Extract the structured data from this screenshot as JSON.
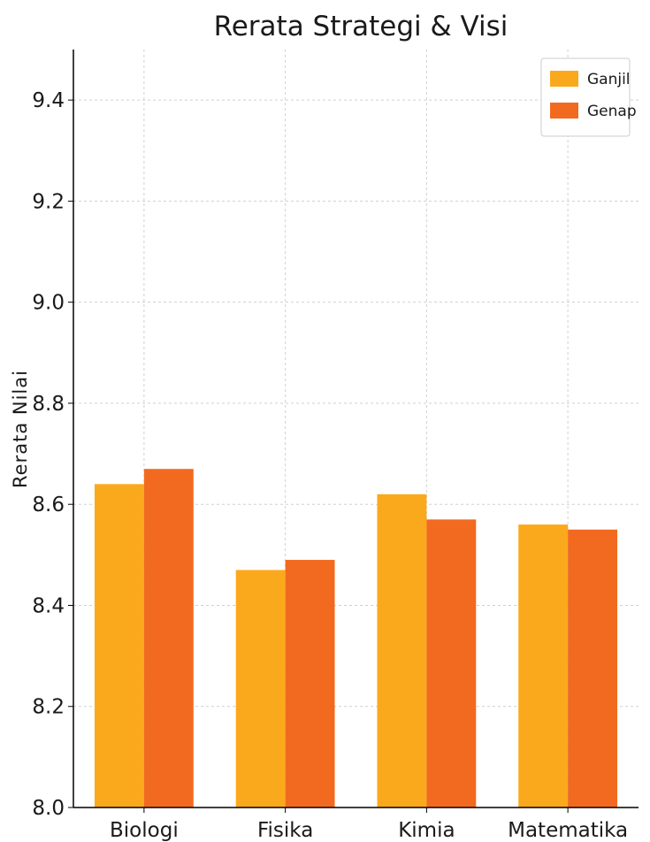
{
  "chart_data": {
    "type": "bar",
    "title": "Rerata Strategi & Visi",
    "xlabel": "",
    "ylabel": "Rerata Nilai",
    "categories": [
      "Biologi",
      "Fisika",
      "Kimia",
      "Matematika"
    ],
    "series": [
      {
        "name": "Ganjil",
        "values": [
          8.64,
          8.47,
          8.62,
          8.56
        ],
        "color": "#FBA91C"
      },
      {
        "name": "Genap",
        "values": [
          8.67,
          8.49,
          8.57,
          8.55
        ],
        "color": "#F26A1F"
      }
    ],
    "ylim": [
      8.0,
      9.5
    ],
    "yticks": [
      "8.0",
      "8.2",
      "8.4",
      "8.6",
      "8.8",
      "9.0",
      "9.2",
      "9.4"
    ],
    "grid": true,
    "legend_position": "top-right"
  }
}
